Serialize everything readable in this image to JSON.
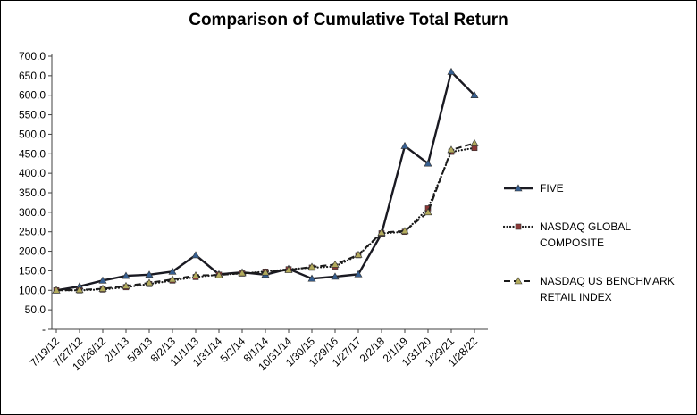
{
  "chart_data": {
    "type": "line",
    "title": "Comparison of Cumulative Total Return",
    "xlabel": "",
    "ylabel": "",
    "ylim": [
      0,
      700
    ],
    "y_step": 50,
    "grid": false,
    "legend_position": "right",
    "y_ticks": [
      "-",
      "50.0",
      "100.0",
      "150.0",
      "200.0",
      "250.0",
      "300.0",
      "350.0",
      "400.0",
      "450.0",
      "500.0",
      "550.0",
      "600.0",
      "650.0",
      "700.0"
    ],
    "x_labels": [
      "7/19/12",
      "7/27/12",
      "10/26/12",
      "2/1/13",
      "5/3/13",
      "8/2/13",
      "11/1/13",
      "1/31/14",
      "5/2/14",
      "8/1/14",
      "10/31/14",
      "1/30/15",
      "1/29/16",
      "1/27/17",
      "2/2/18",
      "2/1/19",
      "1/31/20",
      "1/29/21",
      "1/28/22"
    ],
    "series": [
      {
        "name": "FIVE",
        "line_style": "solid",
        "line_color": "#1a1a22",
        "line_width": 2.4,
        "marker": "triangle",
        "marker_color": "#365f91",
        "values": [
          100,
          110,
          125,
          137,
          140,
          148,
          190,
          141,
          146,
          140,
          155,
          130,
          135,
          141,
          245,
          470,
          425,
          660,
          600
        ]
      },
      {
        "name": "NASDAQ GLOBAL COMPOSITE",
        "line_style": "dotted",
        "line_color": "#1a1a1a",
        "line_width": 2.2,
        "marker": "square",
        "marker_color": "#8c3836",
        "values": [
          100,
          100,
          102,
          108,
          116,
          125,
          134,
          140,
          143,
          148,
          154,
          158,
          161,
          190,
          246,
          250,
          310,
          455,
          465
        ]
      },
      {
        "name": "NASDAQ US BENCHMARK RETAIL INDEX",
        "line_style": "dashed",
        "line_color": "#1a1a1a",
        "line_width": 2,
        "marker": "triangle",
        "marker_color": "#b3ab5c",
        "values": [
          100,
          101,
          104,
          111,
          119,
          128,
          138,
          139,
          144,
          146,
          152,
          160,
          166,
          191,
          248,
          252,
          300,
          460,
          477
        ]
      }
    ]
  }
}
